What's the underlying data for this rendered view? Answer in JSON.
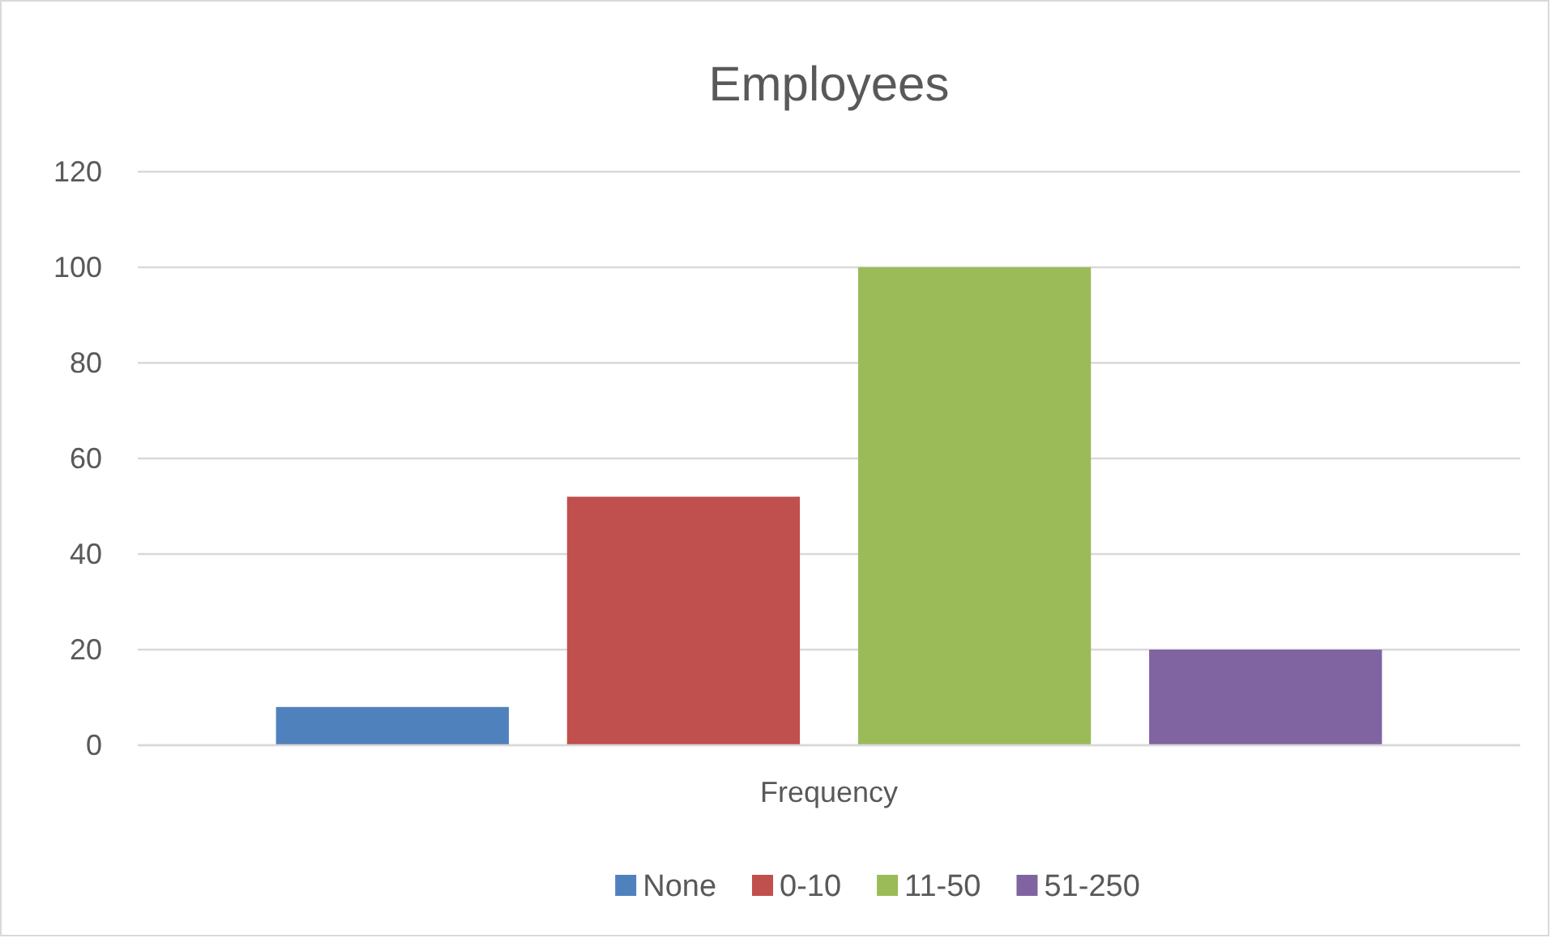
{
  "chart_data": {
    "type": "bar",
    "title": "Employees",
    "categories": [
      "Frequency"
    ],
    "series": [
      {
        "name": "None",
        "color": "#4f81bd",
        "values": [
          8
        ]
      },
      {
        "name": "0-10",
        "color": "#c0504d",
        "values": [
          52
        ]
      },
      {
        "name": "11-50",
        "color": "#9bbb59",
        "values": [
          100
        ]
      },
      {
        "name": "51-250",
        "color": "#8064a2",
        "values": [
          20
        ]
      }
    ],
    "ylim": [
      0,
      120
    ],
    "yticks": [
      0,
      20,
      40,
      60,
      80,
      100,
      120
    ],
    "grid": "y",
    "legend": "bottom"
  }
}
